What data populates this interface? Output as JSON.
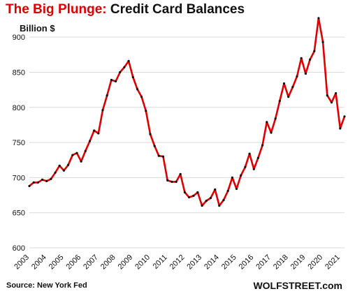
{
  "title": {
    "part1": "The Big Plunge:",
    "part2": " Credit Card Balances"
  },
  "unit_label": "Billion $",
  "source": "Source: New York Fed",
  "brand": "WOLFSTREET.com",
  "colors": {
    "line": "#e00000",
    "marker": "#111111",
    "grid": "#d9d9d9",
    "title_accent": "#e00000"
  },
  "chart_data": {
    "type": "line",
    "title": "The Big Plunge: Credit Card Balances",
    "ylabel": "Billion $",
    "xlabel": "",
    "ylim": [
      600,
      925
    ],
    "xlim": [
      2003.0,
      2021.25
    ],
    "yticks": [
      600,
      650,
      700,
      750,
      800,
      850,
      900
    ],
    "xticks": [
      "2003",
      "2004",
      "2005",
      "2006",
      "2007",
      "2008",
      "2009",
      "2010",
      "2011",
      "2012",
      "2013",
      "2014",
      "2015",
      "2016",
      "2017",
      "2018",
      "2019",
      "2020",
      "2021"
    ],
    "grid": "horizontal",
    "series": [
      {
        "name": "",
        "x": [
          "2003-Q1",
          "2003-Q2",
          "2003-Q3",
          "2003-Q4",
          "2004-Q1",
          "2004-Q2",
          "2004-Q3",
          "2004-Q4",
          "2005-Q1",
          "2005-Q2",
          "2005-Q3",
          "2005-Q4",
          "2006-Q1",
          "2006-Q2",
          "2006-Q3",
          "2006-Q4",
          "2007-Q1",
          "2007-Q2",
          "2007-Q3",
          "2007-Q4",
          "2008-Q1",
          "2008-Q2",
          "2008-Q3",
          "2008-Q4",
          "2009-Q1",
          "2009-Q2",
          "2009-Q3",
          "2009-Q4",
          "2010-Q1",
          "2010-Q2",
          "2010-Q3",
          "2010-Q4",
          "2011-Q1",
          "2011-Q2",
          "2011-Q3",
          "2011-Q4",
          "2012-Q1",
          "2012-Q2",
          "2012-Q3",
          "2012-Q4",
          "2013-Q1",
          "2013-Q2",
          "2013-Q3",
          "2013-Q4",
          "2014-Q1",
          "2014-Q2",
          "2014-Q3",
          "2014-Q4",
          "2015-Q1",
          "2015-Q2",
          "2015-Q3",
          "2015-Q4",
          "2016-Q1",
          "2016-Q2",
          "2016-Q3",
          "2016-Q4",
          "2017-Q1",
          "2017-Q2",
          "2017-Q3",
          "2017-Q4",
          "2018-Q1",
          "2018-Q2",
          "2018-Q3",
          "2018-Q4",
          "2019-Q1",
          "2019-Q2",
          "2019-Q3",
          "2019-Q4",
          "2020-Q1",
          "2020-Q2",
          "2020-Q3",
          "2020-Q4",
          "2021-Q1",
          "2021-Q2"
        ],
        "values": [
          688,
          693,
          693,
          697,
          695,
          698,
          707,
          717,
          710,
          718,
          732,
          735,
          723,
          738,
          752,
          767,
          763,
          796,
          817,
          839,
          837,
          850,
          857,
          866,
          843,
          826,
          815,
          795,
          762,
          745,
          731,
          730,
          696,
          694,
          694,
          705,
          679,
          672,
          674,
          679,
          660,
          667,
          671,
          683,
          660,
          668,
          681,
          700,
          684,
          703,
          715,
          734,
          712,
          728,
          746,
          779,
          764,
          784,
          809,
          834,
          815,
          829,
          844,
          870,
          848,
          868,
          880,
          927,
          893,
          817,
          807,
          820,
          770,
          787
        ]
      }
    ]
  }
}
